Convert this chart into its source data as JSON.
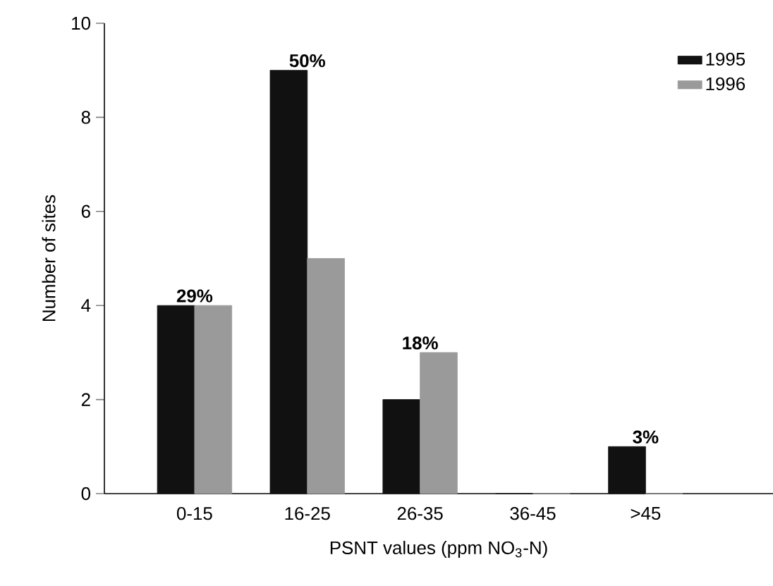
{
  "chart_data": {
    "type": "bar",
    "xlabel": "PSNT values (ppm NO$_{3}$-N)",
    "ylabel": "Number of sites",
    "categories": [
      "0-15",
      "16-25",
      "26-35",
      "36-45",
      ">45"
    ],
    "series": [
      {
        "name": "1995",
        "color": "#111111",
        "values": [
          4,
          9,
          2,
          0,
          1
        ]
      },
      {
        "name": "1996",
        "color": "#9a9a9a",
        "values": [
          4,
          5,
          3,
          0,
          0
        ]
      }
    ],
    "ylim": [
      0,
      10
    ],
    "yticks": [
      0,
      2,
      4,
      6,
      8,
      10
    ],
    "legend": "top right",
    "annotations": [
      {
        "text": "29%",
        "x": "0-15",
        "y": 4
      },
      {
        "text": "50%",
        "x": "16-25",
        "y": 9
      },
      {
        "text": "18%",
        "x": "26-35",
        "y": 3
      },
      {
        "text": "3%",
        "x": ">45",
        "y": 1
      }
    ]
  }
}
